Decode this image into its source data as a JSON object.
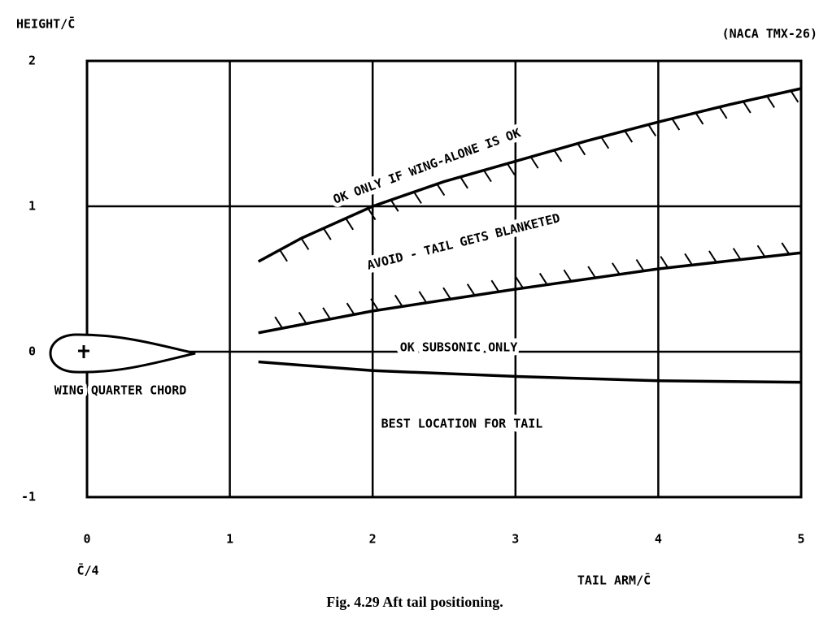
{
  "chart_data": {
    "type": "line",
    "y_label": "HEIGHT/C̄",
    "source": "(NACA TMX-26)",
    "x_label": "TAIL ARM/C̄",
    "x_sublabel": "C̄/4",
    "caption": "Fig. 4.29   Aft tail positioning.",
    "annotations": [
      "OK ONLY IF WING-ALONE IS OK",
      "AVOID - TAIL GETS BLANKETED",
      "OK SUBSONIC ONLY",
      "BEST LOCATION FOR TAIL",
      "WING QUARTER CHORD"
    ],
    "series": [
      {
        "color": "#000000",
        "x": [
          1.2,
          1.5,
          2,
          2.5,
          3,
          3.5,
          4,
          4.5,
          5
        ],
        "values": [
          0.62,
          0.78,
          1.0,
          1.17,
          1.31,
          1.45,
          1.58,
          1.7,
          1.81
        ]
      },
      {
        "color": "#000000",
        "x": [
          1.2,
          2,
          3,
          4,
          5
        ],
        "values": [
          0.13,
          0.28,
          0.43,
          0.57,
          0.68
        ]
      },
      {
        "color": "#000000",
        "x": [
          1.2,
          2,
          3,
          4,
          5
        ],
        "values": [
          -0.07,
          -0.13,
          -0.17,
          -0.2,
          -0.21
        ]
      }
    ],
    "xlim": [
      0,
      5
    ],
    "ylim": [
      -1,
      2
    ],
    "xticks": [
      0,
      1,
      2,
      3,
      4,
      5
    ],
    "yticks": [
      -1,
      0,
      1,
      2
    ],
    "grid": true
  }
}
